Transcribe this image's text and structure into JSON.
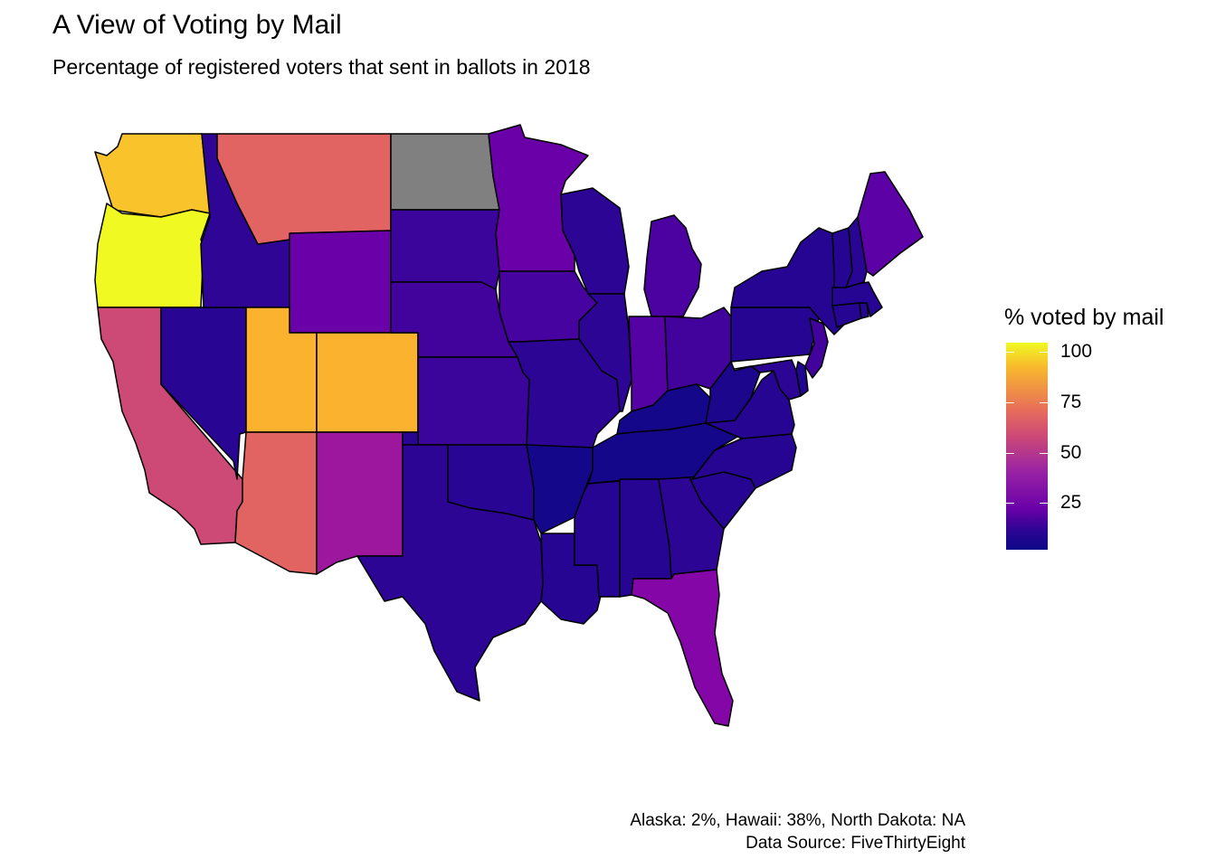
{
  "title": "A View of Voting by Mail",
  "subtitle": "Percentage of registered voters that sent in ballots in 2018",
  "legend": {
    "title": "% voted by mail",
    "ticks": [
      "100",
      "75",
      "50",
      "25"
    ],
    "palette": [
      "#0d0887",
      "#6a00a8",
      "#b12a90",
      "#e16462",
      "#fca636",
      "#f0f921"
    ],
    "na_color": "#808080"
  },
  "caption": {
    "line1": "Alaska: 2%, Hawaii: 38%, North Dakota: NA",
    "line2": "Data Source: FiveThirtyEight"
  },
  "map_data": {
    "states": [
      {
        "id": "OR",
        "pct": 100,
        "color": "#f0f921"
      },
      {
        "id": "WA",
        "pct": 80,
        "color": "#f9c32b"
      },
      {
        "id": "UT",
        "pct": 77,
        "color": "#fbb32f"
      },
      {
        "id": "CO",
        "pct": 77,
        "color": "#fbb32f"
      },
      {
        "id": "MT",
        "pct": 58,
        "color": "#e16462"
      },
      {
        "id": "AZ",
        "pct": 58,
        "color": "#e16462"
      },
      {
        "id": "CA",
        "pct": 52,
        "color": "#cd4a76"
      },
      {
        "id": "NM",
        "pct": 35,
        "color": "#9c179e"
      },
      {
        "id": "FL",
        "pct": 30,
        "color": "#8506a6"
      },
      {
        "id": "WY",
        "pct": 20,
        "color": "#6a00a8"
      },
      {
        "id": "MN",
        "pct": 20,
        "color": "#6a00a8"
      },
      {
        "id": "ME",
        "pct": 18,
        "color": "#5c01a6"
      },
      {
        "id": "IN",
        "pct": 17,
        "color": "#5402a3"
      },
      {
        "id": "MI",
        "pct": 15,
        "color": "#4c02a1"
      },
      {
        "id": "OH",
        "pct": 13,
        "color": "#42039d"
      },
      {
        "id": "IA",
        "pct": 14,
        "color": "#46039f"
      },
      {
        "id": "NE",
        "pct": 13,
        "color": "#42039d"
      },
      {
        "id": "SD",
        "pct": 11,
        "color": "#3b049a"
      },
      {
        "id": "KS",
        "pct": 11,
        "color": "#3b049a"
      },
      {
        "id": "NJ",
        "pct": 13,
        "color": "#42039d"
      },
      {
        "id": "ID",
        "pct": 8,
        "color": "#2f0596"
      },
      {
        "id": "WI",
        "pct": 7,
        "color": "#2c0594"
      },
      {
        "id": "IL",
        "pct": 7,
        "color": "#2c0594"
      },
      {
        "id": "MO",
        "pct": 7,
        "color": "#2c0594"
      },
      {
        "id": "NV",
        "pct": 6,
        "color": "#290593"
      },
      {
        "id": "OK",
        "pct": 6,
        "color": "#290593"
      },
      {
        "id": "TX",
        "pct": 7,
        "color": "#2c0594"
      },
      {
        "id": "LA",
        "pct": 5,
        "color": "#250591"
      },
      {
        "id": "MS",
        "pct": 5,
        "color": "#250591"
      },
      {
        "id": "AL",
        "pct": 5,
        "color": "#250591"
      },
      {
        "id": "GA",
        "pct": 7,
        "color": "#2c0594"
      },
      {
        "id": "SC",
        "pct": 5,
        "color": "#250591"
      },
      {
        "id": "NC",
        "pct": 5,
        "color": "#250591"
      },
      {
        "id": "VA",
        "pct": 5,
        "color": "#250591"
      },
      {
        "id": "WV",
        "pct": 3,
        "color": "#1c068c"
      },
      {
        "id": "KY",
        "pct": 2,
        "color": "#14078a"
      },
      {
        "id": "TN",
        "pct": 2,
        "color": "#14078a"
      },
      {
        "id": "AR",
        "pct": 2,
        "color": "#14078a"
      },
      {
        "id": "PA",
        "pct": 5,
        "color": "#250591"
      },
      {
        "id": "NY",
        "pct": 5,
        "color": "#250591"
      },
      {
        "id": "VT",
        "pct": 5,
        "color": "#250591"
      },
      {
        "id": "NH",
        "pct": 6,
        "color": "#290593"
      },
      {
        "id": "MA",
        "pct": 5,
        "color": "#250591"
      },
      {
        "id": "CT",
        "pct": 5,
        "color": "#250591"
      },
      {
        "id": "RI",
        "pct": 5,
        "color": "#250591"
      },
      {
        "id": "MD",
        "pct": 7,
        "color": "#2c0594"
      },
      {
        "id": "DE",
        "pct": 4,
        "color": "#200690"
      },
      {
        "id": "ND",
        "pct": null,
        "color": "#808080"
      }
    ]
  }
}
